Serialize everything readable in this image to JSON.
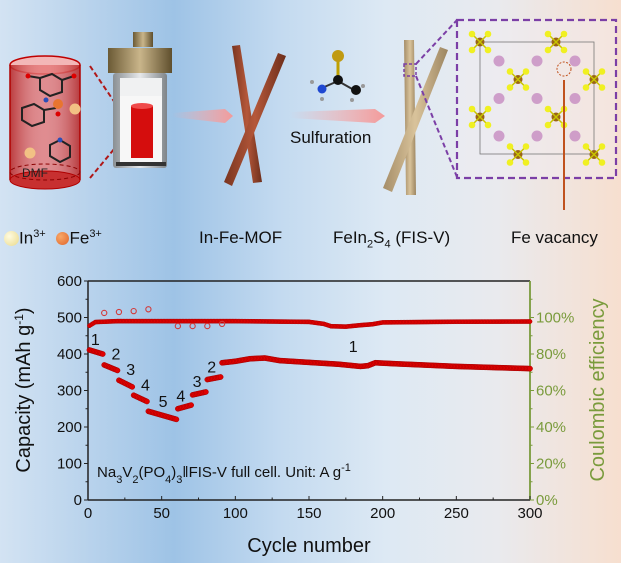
{
  "schematic": {
    "legend": [
      {
        "ion": "In",
        "charge": "3+",
        "color": "#f3e6a6"
      },
      {
        "ion": "Fe",
        "charge": "3+",
        "color": "#e8752f"
      }
    ],
    "solvent_label": "DMF",
    "step_labels": {
      "mof": "In-Fe-MOF",
      "process": "Sulfuration",
      "product_main": "FeIn",
      "product_sub1": "2",
      "product_mid": "S",
      "product_sub2": "4",
      "product_tail": " (FIS-V)",
      "vacancy": "Fe vacancy"
    },
    "colors": {
      "mof_rod": "#9a4a30",
      "fisv_rod": "#c8b08a",
      "arrow": "#f4a7a7",
      "dash_box": "#7b3fa6",
      "vacancy_line": "#c0521e"
    }
  },
  "chart_data": {
    "type": "scatter",
    "title": "",
    "annotation": {
      "pre": "Na",
      "s1": "3",
      "v": "V",
      "s2": "2",
      "po": "(PO",
      "s3": "4",
      "close": ")",
      "s4": "3",
      "post": "‖FIS-V full cell. Unit: A g",
      "sup": "-1"
    },
    "xlabel": "Cycle number",
    "ylabel": "Capacity (mAh g",
    "ylabel_sup": "-1",
    "ylabel_close": ")",
    "y2label": "Coulombic efficiency",
    "xlim": [
      0,
      300
    ],
    "ylim": [
      0,
      600
    ],
    "y2lim": [
      0,
      120
    ],
    "xticks": [
      "0",
      "50",
      "100",
      "150",
      "200",
      "250",
      "300"
    ],
    "yticks": [
      "0",
      "100",
      "200",
      "300",
      "400",
      "500",
      "600"
    ],
    "y2ticks": [
      "0%",
      "20%",
      "40%",
      "60%",
      "80%",
      "100%"
    ],
    "grid": false,
    "rate_labels": [
      {
        "text": "1",
        "cycle": 5,
        "capacity": 425
      },
      {
        "text": "2",
        "cycle": 19,
        "capacity": 385
      },
      {
        "text": "3",
        "cycle": 29,
        "capacity": 343
      },
      {
        "text": "4",
        "cycle": 39,
        "capacity": 300
      },
      {
        "text": "5",
        "cycle": 51,
        "capacity": 255
      },
      {
        "text": "4",
        "cycle": 63,
        "capacity": 270
      },
      {
        "text": "3",
        "cycle": 74,
        "capacity": 310
      },
      {
        "text": "2",
        "cycle": 84,
        "capacity": 350
      },
      {
        "text": "1",
        "cycle": 180,
        "capacity": 405
      }
    ],
    "series": [
      {
        "name": "Capacity",
        "axis": "left",
        "color": "#e00000",
        "segments": [
          {
            "rate": "1",
            "cycles": [
              1,
              10
            ],
            "start": 411,
            "end": 400
          },
          {
            "rate": "2",
            "cycles": [
              11,
              20
            ],
            "start": 370,
            "end": 355
          },
          {
            "rate": "3",
            "cycles": [
              21,
              30
            ],
            "start": 328,
            "end": 310
          },
          {
            "rate": "4",
            "cycles": [
              31,
              40
            ],
            "start": 287,
            "end": 270
          },
          {
            "rate": "5",
            "cycles": [
              41,
              60
            ],
            "start": 243,
            "end": 221
          },
          {
            "rate": "4",
            "cycles": [
              61,
              70
            ],
            "start": 250,
            "end": 260
          },
          {
            "rate": "3",
            "cycles": [
              71,
              80
            ],
            "start": 288,
            "end": 296
          },
          {
            "rate": "2",
            "cycles": [
              81,
              90
            ],
            "start": 330,
            "end": 337
          }
        ],
        "long_cycling": {
          "cycles": [
            91,
            300
          ],
          "points": [
            [
              91,
              376
            ],
            [
              100,
              380
            ],
            [
              110,
              387
            ],
            [
              120,
              389
            ],
            [
              130,
              382
            ],
            [
              150,
              377
            ],
            [
              170,
              372
            ],
            [
              185,
              366
            ],
            [
              190,
              368
            ],
            [
              195,
              376
            ],
            [
              210,
              373
            ],
            [
              250,
              366
            ],
            [
              300,
              360
            ]
          ]
        }
      },
      {
        "name": "Coulombic efficiency",
        "axis": "right",
        "color": "#e00000",
        "points": [
          [
            1,
            95.5
          ],
          [
            5,
            97.5
          ],
          [
            20,
            98
          ],
          [
            60,
            98
          ],
          [
            100,
            98
          ],
          [
            150,
            97.6
          ],
          [
            160,
            96.5
          ],
          [
            165,
            95.2
          ],
          [
            175,
            95.0
          ],
          [
            185,
            95.8
          ],
          [
            193,
            96.3
          ],
          [
            200,
            97.3
          ],
          [
            250,
            97.7
          ],
          [
            300,
            97.8
          ]
        ],
        "outliers": [
          [
            11,
            102.5
          ],
          [
            21,
            103
          ],
          [
            31,
            103.5
          ],
          [
            41,
            104.5
          ],
          [
            61,
            95.3
          ],
          [
            71,
            95.3
          ],
          [
            81,
            95.3
          ],
          [
            91,
            96.5
          ]
        ]
      }
    ]
  }
}
